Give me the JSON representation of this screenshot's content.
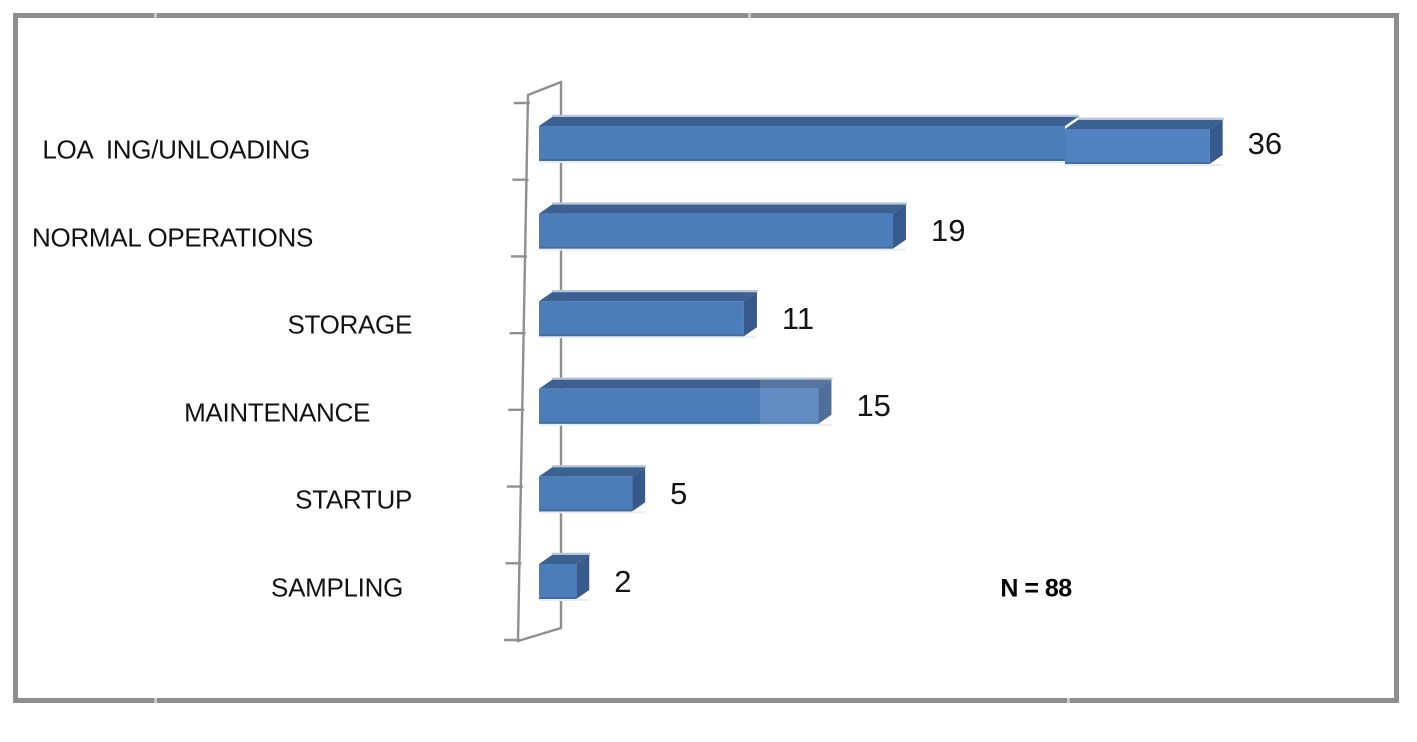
{
  "chart_data": {
    "type": "bar",
    "orientation": "horizontal",
    "style": "3d",
    "title": "",
    "xlabel": "",
    "ylabel": "",
    "categories": [
      "LOA  ING/UNLOADING",
      "NORMAL OPERATIONS",
      "STORAGE",
      "MAINTENANCE",
      "STARTUP",
      "SAMPLING"
    ],
    "values": [
      36,
      19,
      11,
      15,
      5,
      2
    ],
    "value_labels": [
      "36",
      "19",
      "11",
      "15",
      "5",
      "2"
    ],
    "annotation": "N = 88",
    "xlim": [
      0,
      38
    ],
    "grid": false,
    "legend": false,
    "colors": {
      "bar_face": "#4b7db9",
      "bar_face_light": "#4f82bf",
      "bar_top": "#3c6191",
      "bar_end": "#38598c",
      "bar_highlight": "#b6c5d9",
      "bar_bottom_edge": "#3a618f",
      "bar_under_shadow": "#e8edf4",
      "axis": "#8f8f8f",
      "border": "#8e8e8e",
      "text": "#121212"
    }
  }
}
